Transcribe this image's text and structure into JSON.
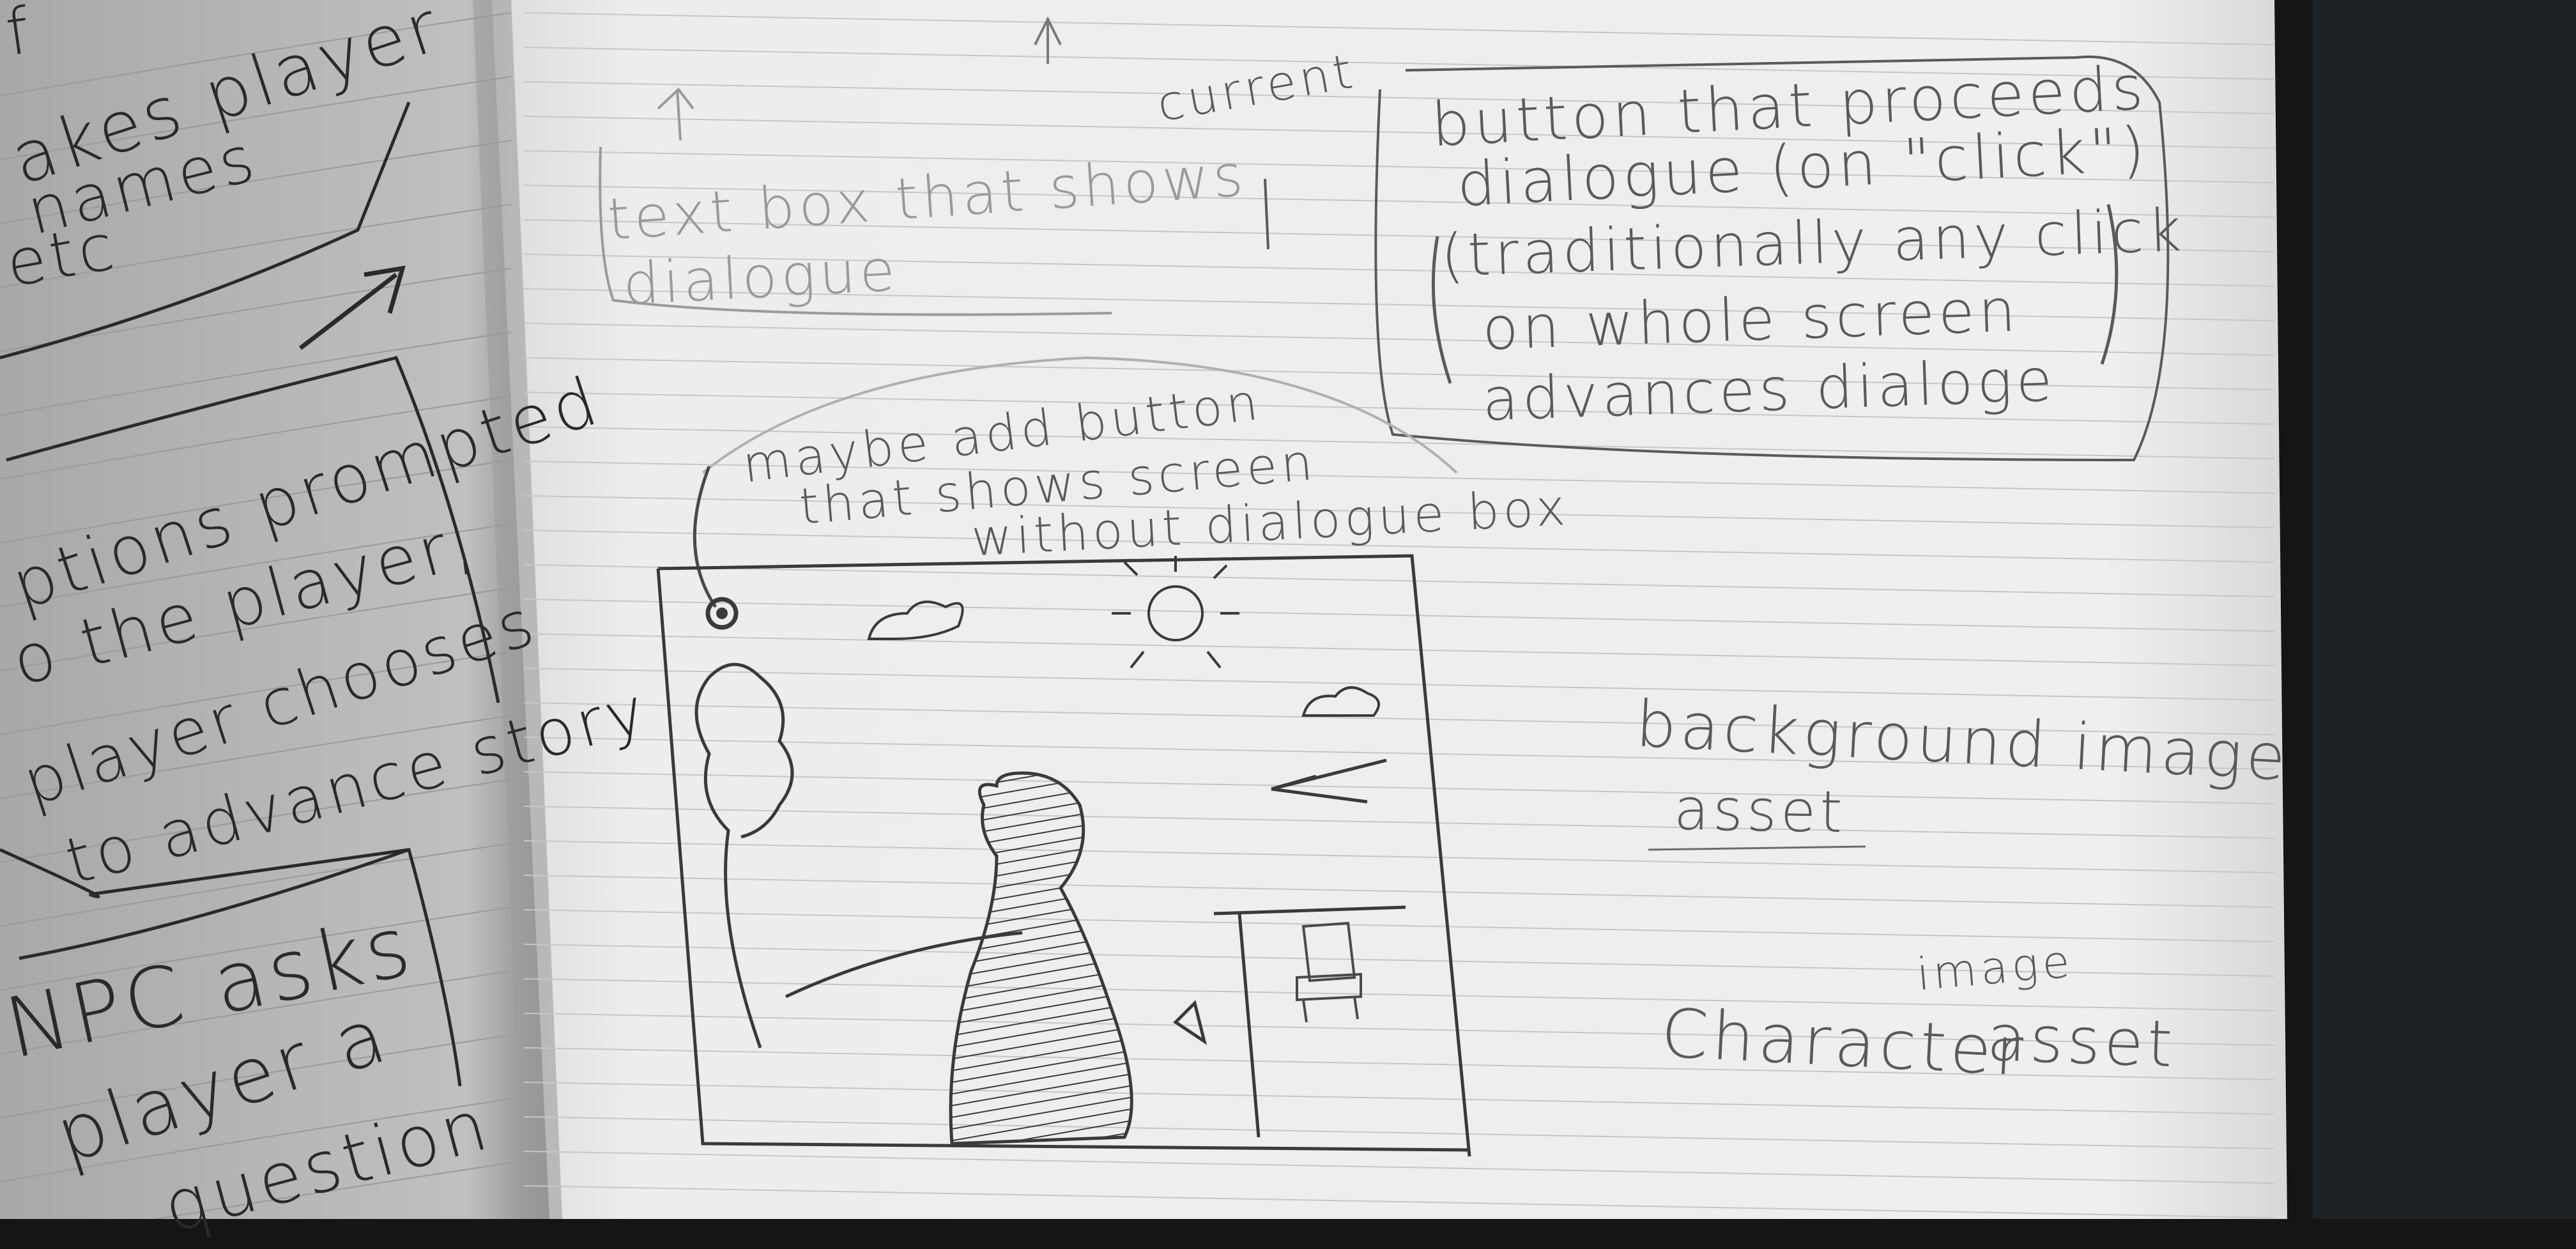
{
  "left_page": {
    "notes": [
      "f",
      "akes player",
      "names",
      "etc",
      "ptions prompted",
      "o the player,",
      "player chooses",
      "to advance story",
      "NPC asks",
      "player a",
      "question"
    ]
  },
  "right_page": {
    "dialogue_box_label": [
      "text box that shows",
      "dialogue"
    ],
    "current_label": "current",
    "proceed_button_note": [
      "button that proceeds",
      "dialogue (on \"click\")",
      "(traditionally any click",
      "on whole screen",
      "advances dialoge"
    ],
    "hide_box_note": [
      "maybe add button",
      "that shows screen",
      "without dialogue box"
    ],
    "background_label": [
      "background image",
      "asset"
    ],
    "character_label": "Character",
    "image_label": "image",
    "asset_label": "asset"
  },
  "colors": {
    "paper": "#ededeb",
    "left_paper": "#b8b8b8",
    "pencil": "#2a2a2a",
    "grid_line": "#c7c7c7",
    "background_dark": "#151515"
  }
}
